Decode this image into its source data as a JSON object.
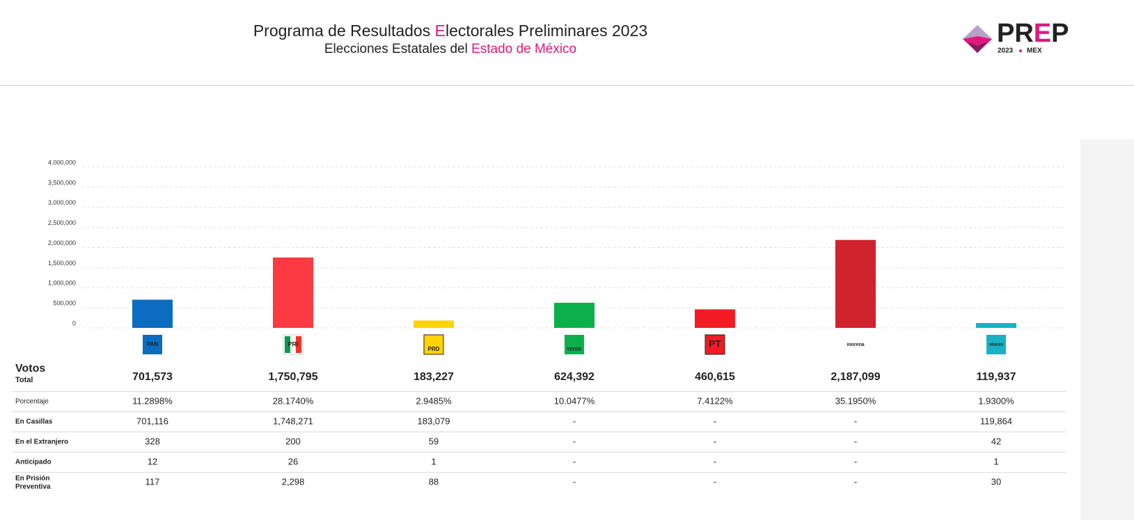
{
  "header": {
    "title_parts": [
      "Programa de Resultados ",
      "E",
      "lectorales Preliminares 2023"
    ],
    "subtitle_parts": [
      "Elecciones Estatales del ",
      "Estado de México"
    ]
  },
  "logo": {
    "text_parts": [
      "PR",
      "E",
      "P"
    ],
    "year": "2023",
    "region": "MEX"
  },
  "chart_data": {
    "type": "bar",
    "categories": [
      "PAN",
      "PRI",
      "PRD",
      "VERDE",
      "PT",
      "morena",
      "alianza"
    ],
    "values": [
      701573,
      1750795,
      183227,
      624392,
      460615,
      2187099,
      119937
    ],
    "value_labels": [
      "701,573",
      "1,750,795",
      "183,227",
      "624,392",
      "460,615",
      "2,187,099",
      "119,937"
    ],
    "colors": [
      "#0b6cc0",
      "#fb3a42",
      "#ffd400",
      "#0bb04b",
      "#f31b23",
      "#d1232e",
      "#16b2c6"
    ],
    "ylim": [
      0,
      4000000
    ],
    "yticks": [
      0,
      {
        "value": 500000,
        "label": "500,000"
      },
      {
        "value": 1000000,
        "label": "1,000,000"
      },
      {
        "value": 1500000,
        "label": "1,500,000"
      },
      {
        "value": 2000000,
        "label": "2,000,000"
      },
      {
        "value": 2500000,
        "label": "2,500,000"
      },
      {
        "value": 3000000,
        "label": "3,000,000"
      },
      {
        "value": 3500000,
        "label": "3,500,000"
      },
      {
        "value": 4000000,
        "label": "4,000,000"
      }
    ],
    "grid": true
  },
  "table": {
    "total_label": [
      "Votos",
      "Total"
    ],
    "rows": [
      {
        "label": "Porcentaje",
        "cells": [
          "11.2898%",
          "28.1740%",
          "2.9485%",
          "10.0477%",
          "7.4122%",
          "35.1950%",
          "1.9300%"
        ]
      },
      {
        "label": "En Casillas",
        "cells": [
          "701,116",
          "1,748,271",
          "183,079",
          "-",
          "-",
          "-",
          "119,864"
        ]
      },
      {
        "label": "En el Extranjero",
        "cells": [
          "328",
          "200",
          "59",
          "-",
          "-",
          "-",
          "42"
        ]
      },
      {
        "label": "Anticipado",
        "cells": [
          "12",
          "26",
          "1",
          "-",
          "-",
          "-",
          "1"
        ]
      },
      {
        "label": "En Prisión Preventiva",
        "cells": [
          "117",
          "2,298",
          "88",
          "-",
          "-",
          "-",
          "30"
        ]
      }
    ]
  }
}
